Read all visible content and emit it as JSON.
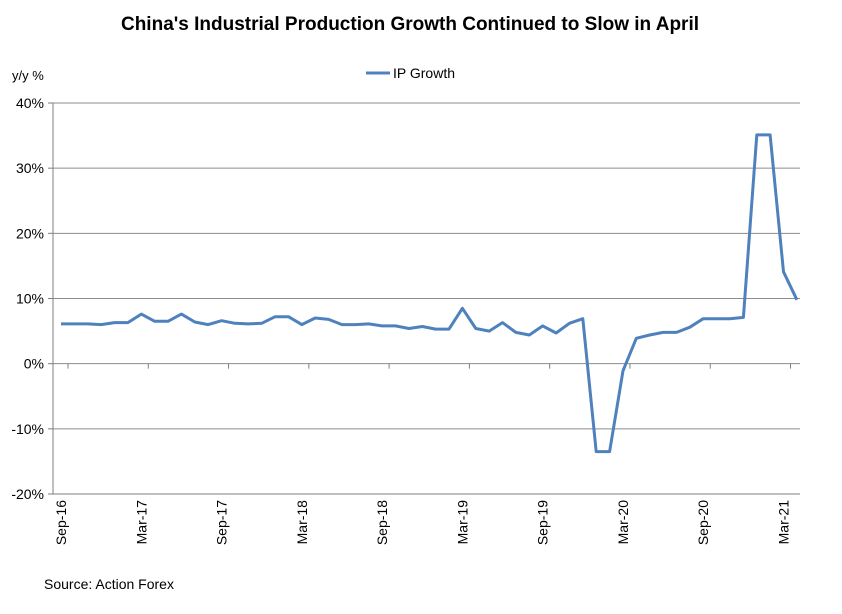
{
  "chart_data": {
    "type": "line",
    "title": "China's Industrial Production Growth Continued to Slow in April",
    "ylabel": "y/y %",
    "xlabel": "",
    "ylim": [
      -20,
      40
    ],
    "yticks": [
      "40%",
      "30%",
      "20%",
      "10%",
      "0%",
      "-10%",
      "-20%"
    ],
    "ytick_values": [
      40,
      30,
      20,
      10,
      0,
      -10,
      -20
    ],
    "grid": true,
    "legend": "top-center",
    "x_tick_labels": [
      "Sep-16",
      "Mar-17",
      "Sep-17",
      "Mar-18",
      "Sep-18",
      "Mar-19",
      "Sep-19",
      "Mar-20",
      "Sep-20",
      "Mar-21"
    ],
    "x_tick_indices": [
      0,
      6,
      12,
      18,
      24,
      30,
      36,
      42,
      48,
      54
    ],
    "series": [
      {
        "name": "IP Growth",
        "color": "#4F81BD",
        "values": [
          6.1,
          6.1,
          6.1,
          6.0,
          6.3,
          6.3,
          7.6,
          6.5,
          6.5,
          7.6,
          6.4,
          6.0,
          6.6,
          6.2,
          6.1,
          6.2,
          7.2,
          7.2,
          6.0,
          7.0,
          6.8,
          6.0,
          6.0,
          6.1,
          5.8,
          5.8,
          5.4,
          5.7,
          5.3,
          5.3,
          8.5,
          5.4,
          5.0,
          6.3,
          4.8,
          4.4,
          5.8,
          4.7,
          6.2,
          6.9,
          -13.5,
          -13.5,
          -1.1,
          3.9,
          4.4,
          4.8,
          4.8,
          5.6,
          6.9,
          6.9,
          6.9,
          7.1,
          35.1,
          35.1,
          14.1,
          9.8
        ]
      }
    ]
  },
  "footer": {
    "source": "Source: Action Forex"
  }
}
